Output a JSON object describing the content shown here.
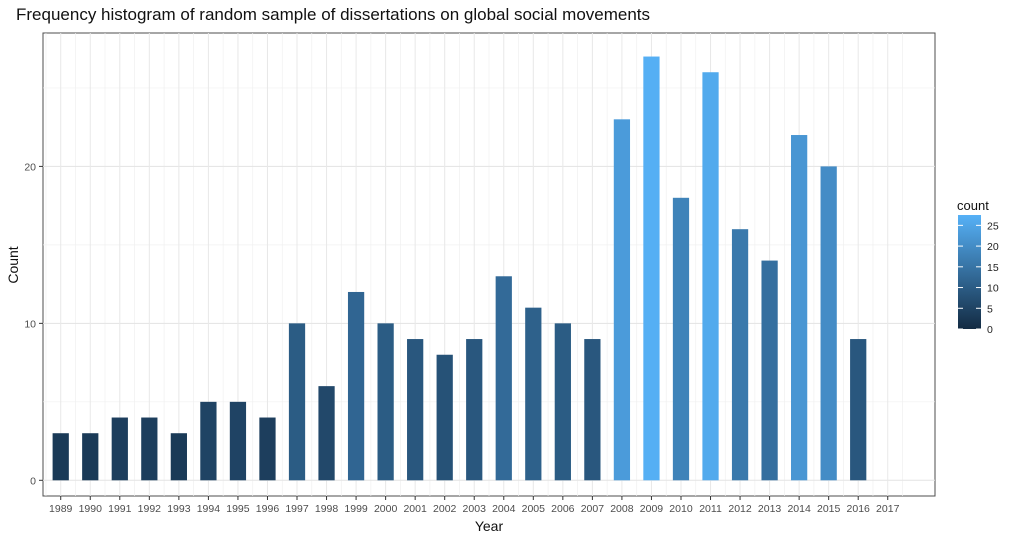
{
  "chart_data": {
    "type": "bar",
    "title": "Frequency histogram of random sample of dissertations on global social movements",
    "xlabel": "Year",
    "ylabel": "Count",
    "categories": [
      "1989",
      "1990",
      "1991",
      "1992",
      "1993",
      "1994",
      "1995",
      "1996",
      "1997",
      "1998",
      "1999",
      "2000",
      "2001",
      "2002",
      "2003",
      "2004",
      "2005",
      "2006",
      "2007",
      "2008",
      "2009",
      "2010",
      "2011",
      "2012",
      "2013",
      "2014",
      "2015",
      "2016",
      "2017"
    ],
    "values": [
      3,
      3,
      4,
      4,
      3,
      5,
      5,
      4,
      10,
      6,
      12,
      10,
      9,
      8,
      9,
      13,
      11,
      10,
      9,
      23,
      27,
      18,
      26,
      16,
      14,
      22,
      20,
      9,
      null
    ],
    "ylim": [
      -1,
      28.5
    ],
    "yticks": [
      0,
      10,
      20
    ],
    "grid": true,
    "legend": {
      "title": "count",
      "placement": "right",
      "ticks": [
        0,
        5,
        10,
        15,
        20,
        25
      ],
      "range": [
        0,
        27.5
      ],
      "color_low": "#132B43",
      "color_high": "#56B1F7"
    }
  }
}
